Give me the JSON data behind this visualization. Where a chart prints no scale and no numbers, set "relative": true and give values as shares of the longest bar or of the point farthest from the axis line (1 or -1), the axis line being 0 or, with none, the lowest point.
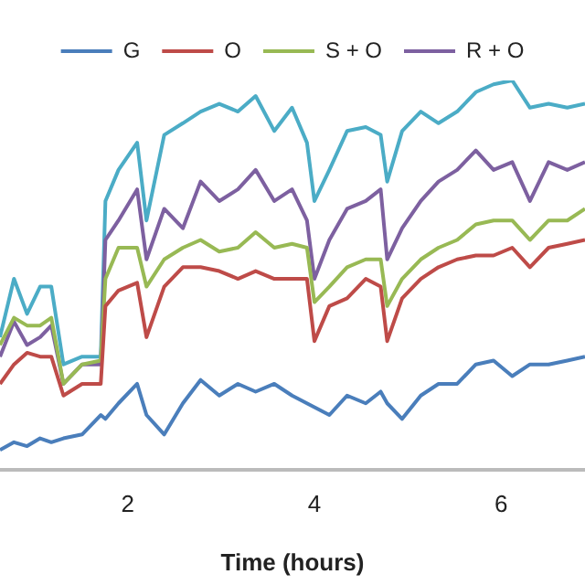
{
  "chart_data": {
    "type": "line",
    "relative": true,
    "xlabel": "Time (hours)",
    "xlim": [
      0.63,
      6.9
    ],
    "xticks": [
      2,
      4,
      6
    ],
    "grid": false,
    "legend": "top",
    "marker": "none",
    "line_style": "solid",
    "x": [
      0.63,
      0.78,
      0.92,
      1.06,
      1.18,
      1.31,
      1.51,
      1.71,
      1.76,
      1.9,
      2.1,
      2.2,
      2.39,
      2.59,
      2.78,
      2.98,
      3.18,
      3.37,
      3.57,
      3.76,
      3.92,
      4.0,
      4.16,
      4.35,
      4.55,
      4.71,
      4.78,
      4.94,
      5.14,
      5.33,
      5.53,
      5.73,
      5.92,
      6.12,
      6.31,
      6.51,
      6.71,
      6.9
    ],
    "series": [
      {
        "name": "G",
        "color": "#4a7ebb",
        "values": [
          0.05,
          0.07,
          0.06,
          0.08,
          0.07,
          0.08,
          0.09,
          0.14,
          0.13,
          0.17,
          0.22,
          0.14,
          0.09,
          0.17,
          0.23,
          0.19,
          0.22,
          0.2,
          0.22,
          0.19,
          0.17,
          0.16,
          0.14,
          0.19,
          0.17,
          0.2,
          0.17,
          0.13,
          0.19,
          0.22,
          0.22,
          0.27,
          0.28,
          0.24,
          0.27,
          0.27,
          0.28,
          0.29
        ]
      },
      {
        "name": "O",
        "color": "#be4b48",
        "values": [
          0.22,
          0.27,
          0.3,
          0.29,
          0.29,
          0.19,
          0.22,
          0.22,
          0.42,
          0.46,
          0.48,
          0.34,
          0.47,
          0.52,
          0.52,
          0.51,
          0.49,
          0.51,
          0.49,
          0.49,
          0.49,
          0.33,
          0.42,
          0.44,
          0.49,
          0.47,
          0.33,
          0.44,
          0.49,
          0.52,
          0.54,
          0.55,
          0.55,
          0.57,
          0.52,
          0.57,
          0.58,
          0.59
        ]
      },
      {
        "name": "S + O",
        "color": "#98b954",
        "values": [
          0.32,
          0.39,
          0.37,
          0.37,
          0.39,
          0.22,
          0.27,
          0.28,
          0.49,
          0.57,
          0.57,
          0.47,
          0.54,
          0.57,
          0.59,
          0.56,
          0.57,
          0.61,
          0.57,
          0.58,
          0.57,
          0.43,
          0.47,
          0.52,
          0.54,
          0.54,
          0.42,
          0.49,
          0.54,
          0.57,
          0.59,
          0.63,
          0.64,
          0.64,
          0.59,
          0.64,
          0.64,
          0.67
        ]
      },
      {
        "name": "R + O",
        "color": "#7d60a0",
        "values": [
          0.29,
          0.38,
          0.32,
          0.34,
          0.37,
          0.22,
          0.27,
          0.27,
          0.59,
          0.64,
          0.72,
          0.54,
          0.67,
          0.62,
          0.74,
          0.69,
          0.72,
          0.77,
          0.69,
          0.72,
          0.64,
          0.49,
          0.59,
          0.67,
          0.69,
          0.72,
          0.54,
          0.62,
          0.69,
          0.74,
          0.77,
          0.82,
          0.77,
          0.79,
          0.69,
          0.79,
          0.77,
          0.79
        ]
      },
      {
        "color": "#4bacc6",
        "values": [
          0.34,
          0.49,
          0.4,
          0.47,
          0.47,
          0.27,
          0.29,
          0.29,
          0.69,
          0.77,
          0.84,
          0.64,
          0.86,
          0.89,
          0.92,
          0.94,
          0.92,
          0.96,
          0.87,
          0.93,
          0.84,
          0.69,
          0.77,
          0.87,
          0.88,
          0.86,
          0.74,
          0.87,
          0.92,
          0.89,
          0.92,
          0.97,
          0.99,
          1.0,
          0.93,
          0.94,
          0.93,
          0.94
        ]
      }
    ]
  }
}
